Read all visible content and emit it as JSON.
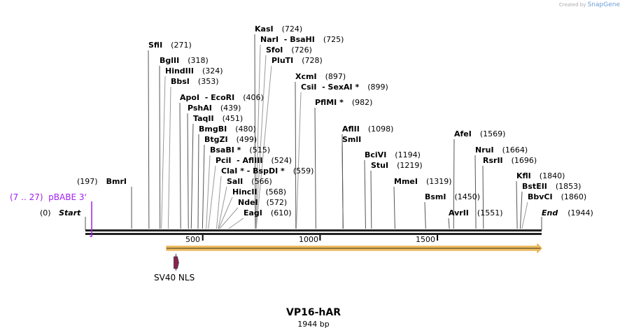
{
  "credit": {
    "prefix": "Created by",
    "brand": "SnapGene"
  },
  "title": "VP16-hAR",
  "length_label": "1944 bp",
  "total_bp": 1944,
  "start": {
    "label": "Start",
    "pos": "(0)"
  },
  "end": {
    "label": "End",
    "pos": "(1944)"
  },
  "primer": {
    "range": "(7 .. 27)",
    "name": "pBABE 3'",
    "color": "#a020f0"
  },
  "ticks": [
    "500",
    "1000",
    "1500"
  ],
  "feature": {
    "name": "SV40 NLS",
    "color": "#8b2252",
    "orf_color": "#f5c46a"
  },
  "sites": [
    {
      "name": "BmrI",
      "pos": "(197)",
      "bp": 197
    },
    {
      "name": "SfiI",
      "pos": "(271)",
      "bp": 271
    },
    {
      "name": "BglII",
      "pos": "(318)",
      "bp": 318
    },
    {
      "name": "HindIII",
      "pos": "(324)",
      "bp": 324
    },
    {
      "name": "BbsI",
      "pos": "(353)",
      "bp": 353
    },
    {
      "name": "ApoI  - EcoRI",
      "pos": "(406)",
      "bp": 406
    },
    {
      "name": "PshAI",
      "pos": "(439)",
      "bp": 439
    },
    {
      "name": "TaqII",
      "pos": "(451)",
      "bp": 451
    },
    {
      "name": "BmgBI",
      "pos": "(480)",
      "bp": 480
    },
    {
      "name": "BtgZI",
      "pos": "(499)",
      "bp": 499
    },
    {
      "name": "BsaBI *",
      "pos": "(515)",
      "bp": 515
    },
    {
      "name": "PciI  - AflIII",
      "pos": "(524)",
      "bp": 524
    },
    {
      "name": "ClaI * - BspDI *",
      "pos": "(559)",
      "bp": 559
    },
    {
      "name": "SalI",
      "pos": "(566)",
      "bp": 566
    },
    {
      "name": "HincII",
      "pos": "(568)",
      "bp": 568
    },
    {
      "name": "NdeI",
      "pos": "(572)",
      "bp": 572
    },
    {
      "name": "EagI",
      "pos": "(610)",
      "bp": 610
    },
    {
      "name": "KasI",
      "pos": "(724)",
      "bp": 724
    },
    {
      "name": "NarI  - BsaHI",
      "pos": "(725)",
      "bp": 725
    },
    {
      "name": "SfoI",
      "pos": "(726)",
      "bp": 726
    },
    {
      "name": "PluTI",
      "pos": "(728)",
      "bp": 728
    },
    {
      "name": "XcmI",
      "pos": "(897)",
      "bp": 897
    },
    {
      "name": "CsiI  - SexAI *",
      "pos": "(899)",
      "bp": 899
    },
    {
      "name": "PflMI *",
      "pos": "(982)",
      "bp": 982
    },
    {
      "name": "AflII",
      "pos": "(1098)",
      "bp": 1098
    },
    {
      "name": "SmlI",
      "pos": "",
      "bp": 1098
    },
    {
      "name": "BciVI",
      "pos": "(1194)",
      "bp": 1194
    },
    {
      "name": "StuI",
      "pos": "(1219)",
      "bp": 1219
    },
    {
      "name": "MmeI",
      "pos": "(1319)",
      "bp": 1319
    },
    {
      "name": "BsmI",
      "pos": "(1450)",
      "bp": 1450
    },
    {
      "name": "AvrII",
      "pos": "(1551)",
      "bp": 1551
    },
    {
      "name": "AfeI",
      "pos": "(1569)",
      "bp": 1569
    },
    {
      "name": "NruI",
      "pos": "(1664)",
      "bp": 1664
    },
    {
      "name": "RsrII",
      "pos": "(1696)",
      "bp": 1696
    },
    {
      "name": "KflI",
      "pos": "(1840)",
      "bp": 1840
    },
    {
      "name": "BstEII",
      "pos": "(1853)",
      "bp": 1853
    },
    {
      "name": "BbvCI",
      "pos": "(1860)",
      "bp": 1860
    }
  ]
}
